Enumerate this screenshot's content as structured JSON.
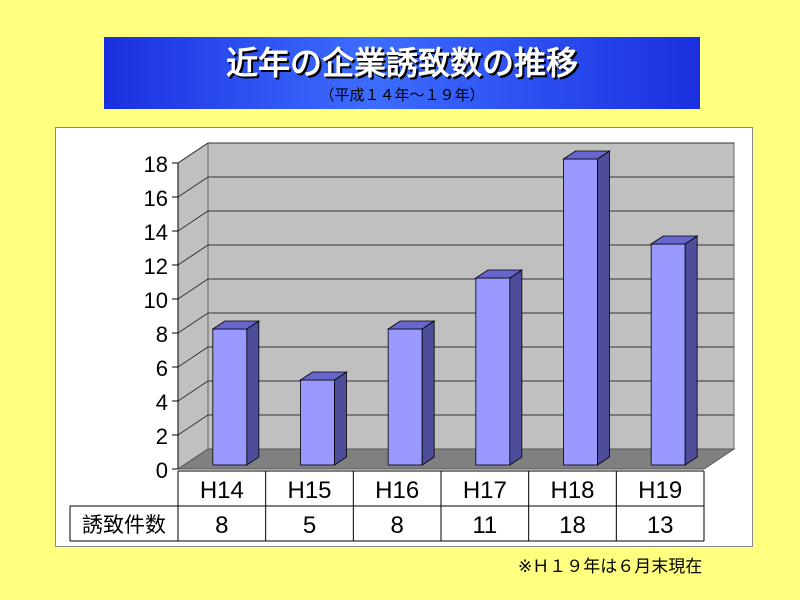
{
  "title": "近年の企業誘致数の推移",
  "subtitle": "（平成１４年～１９年）",
  "footnote": "※Ｈ１９年は６月末現在",
  "colors": {
    "background": "#ffff80",
    "bar_front": "#9999ff",
    "bar_side": "#4d4d99",
    "bar_top": "#6666cc",
    "wall": "#c0c0c0",
    "floor": "#808080"
  },
  "chart_data": {
    "type": "bar",
    "categories": [
      "H14",
      "H15",
      "H16",
      "H17",
      "H18",
      "H19"
    ],
    "series": [
      {
        "name": "誘致件数",
        "values": [
          8,
          5,
          8,
          11,
          18,
          13
        ]
      }
    ],
    "yticks": [
      "0",
      "2",
      "4",
      "6",
      "8",
      "10",
      "12",
      "14",
      "16",
      "18"
    ],
    "ylim": [
      0,
      18
    ],
    "grid": true,
    "three_d": true,
    "data_table": true
  }
}
